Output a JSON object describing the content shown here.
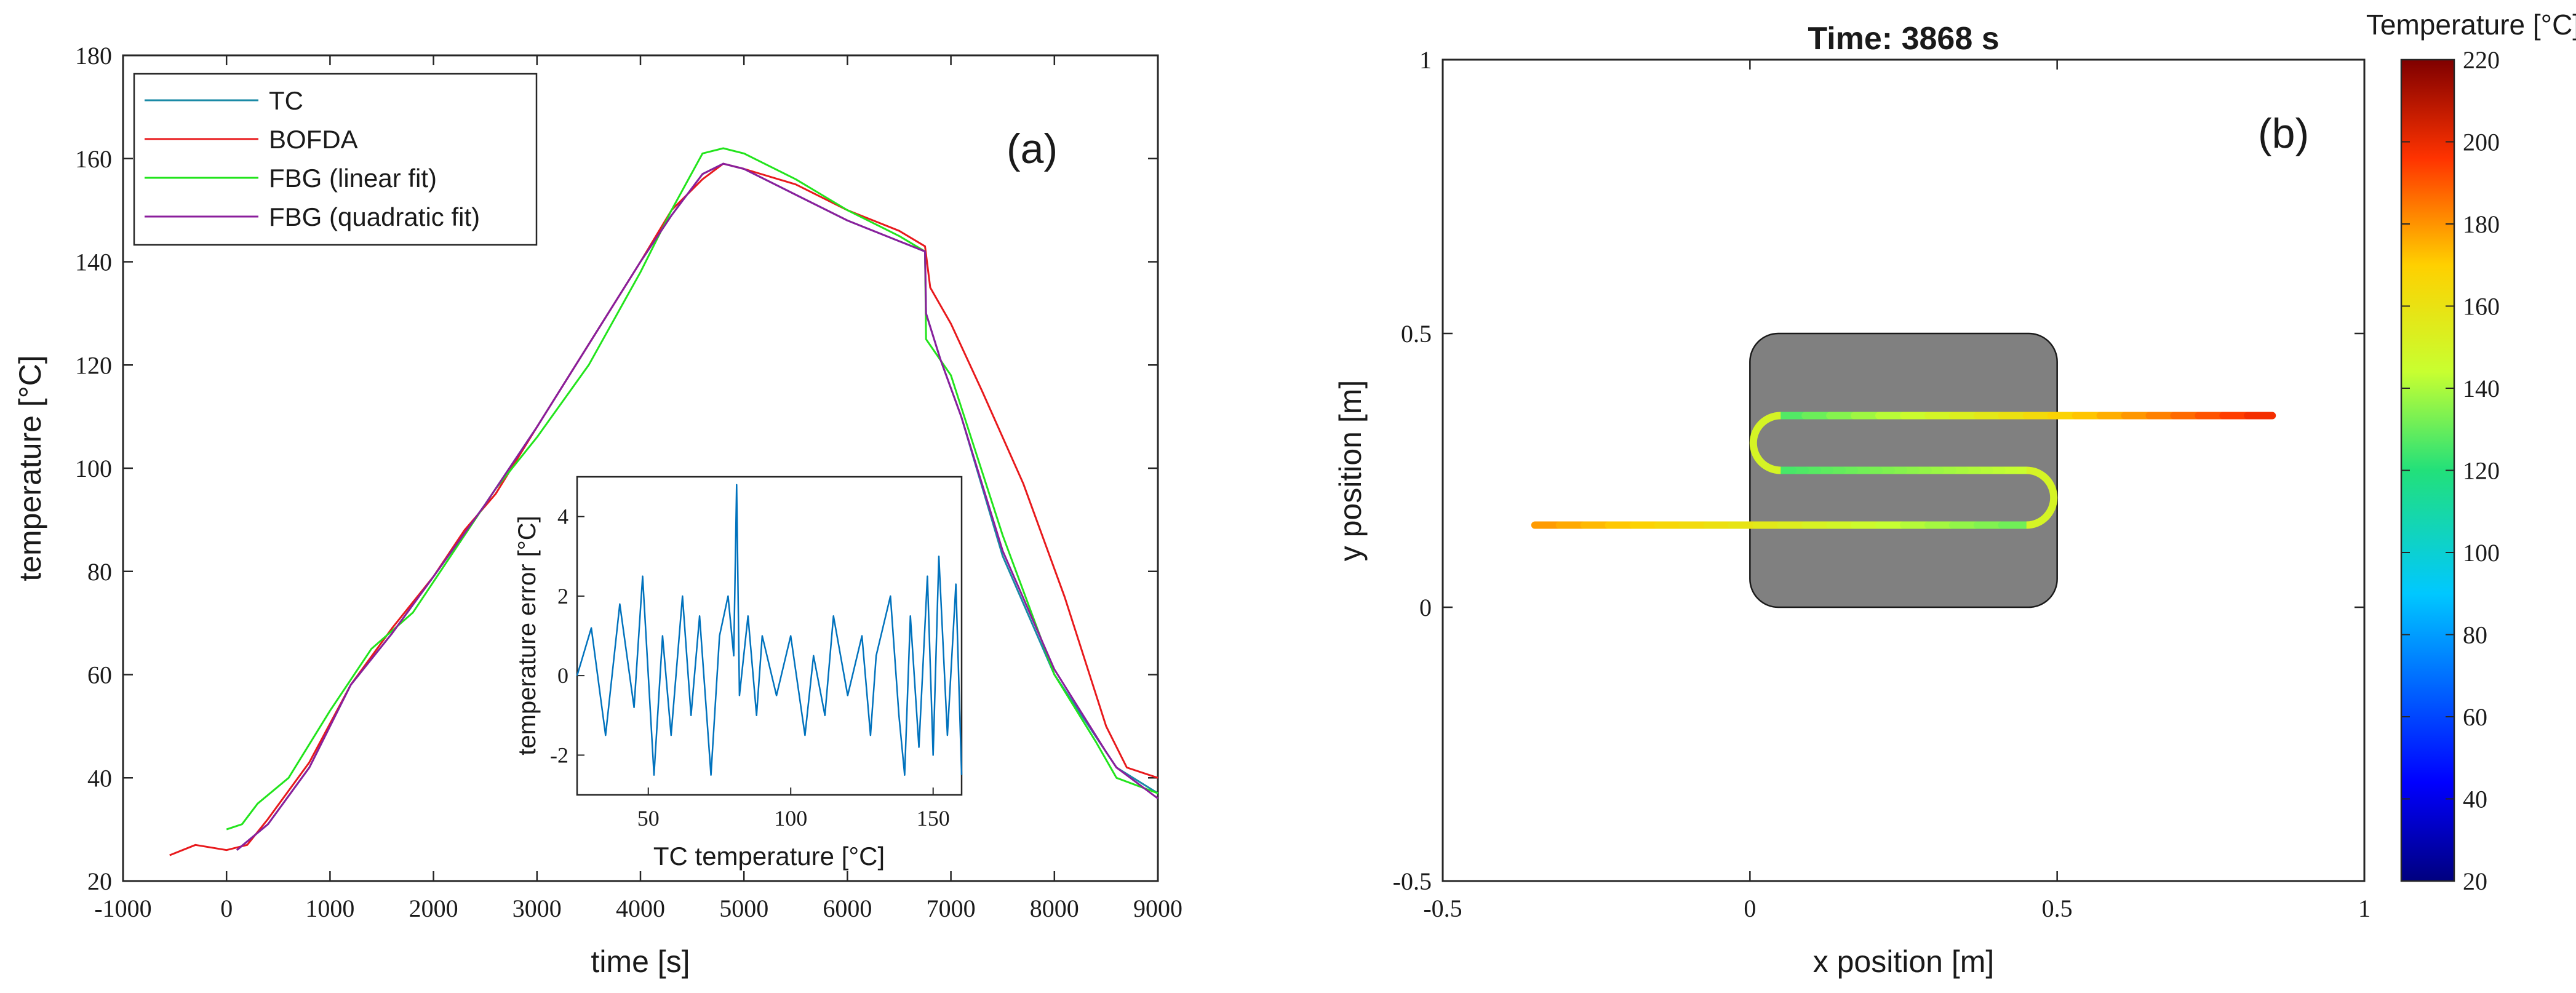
{
  "figure": {
    "panel_a_tag": "(a)",
    "panel_b_tag": "(b)"
  },
  "chart_data": [
    {
      "type": "line",
      "panel": "(a)",
      "title": "",
      "xlabel": "time [s]",
      "ylabel": "temperature  [°C]",
      "xlim": [
        -1000,
        9000
      ],
      "ylim": [
        20,
        180
      ],
      "xticks": [
        -1000,
        0,
        1000,
        2000,
        3000,
        4000,
        5000,
        6000,
        7000,
        8000,
        9000
      ],
      "yticks": [
        20,
        40,
        60,
        80,
        100,
        120,
        140,
        160,
        180
      ],
      "grid": false,
      "legend_position": "top-left",
      "series": [
        {
          "name": "TC",
          "color": "#1a8aa6",
          "x": [
            100,
            400,
            800,
            1200,
            1600,
            2000,
            2500,
            3000,
            3500,
            4000,
            4300,
            4600,
            4800,
            5000,
            5500,
            6000,
            6500,
            6750,
            6760,
            6900,
            7100,
            7500,
            8000,
            8500,
            8600,
            9000
          ],
          "y": [
            26,
            31,
            42,
            58,
            68,
            79,
            93,
            108,
            124,
            140,
            149,
            157,
            159,
            158,
            153,
            148,
            144,
            142,
            130,
            121,
            110,
            83,
            60,
            45,
            42,
            37
          ]
        },
        {
          "name": "BOFDA",
          "color": "#e8191c",
          "x": [
            -550,
            -300,
            0,
            200,
            400,
            800,
            1200,
            1600,
            2000,
            2300,
            2600,
            3000,
            3500,
            4000,
            4300,
            4600,
            4800,
            5000,
            5500,
            6000,
            6500,
            6750,
            6800,
            7000,
            7300,
            7700,
            8100,
            8500,
            8700,
            9000
          ],
          "y": [
            25,
            27,
            26,
            27,
            32,
            43,
            58,
            69,
            79,
            88,
            95,
            108,
            124,
            140,
            150,
            156,
            159,
            158,
            155,
            150,
            146,
            143,
            135,
            128,
            115,
            97,
            75,
            50,
            42,
            40
          ]
        },
        {
          "name": "FBG (linear fit)",
          "color": "#22e41c",
          "x": [
            0,
            150,
            300,
            600,
            1000,
            1400,
            1800,
            2200,
            2600,
            3000,
            3500,
            4000,
            4300,
            4600,
            4800,
            5000,
            5500,
            6000,
            6500,
            6750,
            6760,
            7000,
            7500,
            8000,
            8400,
            8600,
            9000
          ],
          "y": [
            30,
            31,
            35,
            40,
            53,
            65,
            72,
            84,
            96,
            106,
            120,
            138,
            150,
            161,
            162,
            161,
            156,
            150,
            145,
            142,
            125,
            118,
            87,
            60,
            47,
            40,
            37
          ]
        },
        {
          "name": "FBG (quadratic fit)",
          "color": "#8b1e9c",
          "x": [
            100,
            400,
            800,
            1200,
            1600,
            2000,
            2500,
            3000,
            3500,
            4000,
            4300,
            4600,
            4800,
            5000,
            5500,
            6000,
            6500,
            6750,
            6760,
            6900,
            7100,
            7500,
            8000,
            8500,
            8600,
            9000
          ],
          "y": [
            26,
            31,
            42,
            58,
            68,
            79,
            93,
            108,
            124,
            140,
            149,
            157,
            159,
            158,
            153,
            148,
            144,
            142,
            130,
            121,
            110,
            84,
            61,
            45,
            42,
            36
          ]
        }
      ]
    },
    {
      "type": "line",
      "panel": "(a) inset",
      "title": "",
      "xlabel": "TC temperature  [°C]",
      "ylabel": "temperature error  [°C]",
      "xlim": [
        25,
        160
      ],
      "ylim": [
        -3,
        5
      ],
      "xticks": [
        50,
        100,
        150
      ],
      "yticks": [
        -2,
        0,
        2,
        4
      ],
      "grid": false,
      "series": [
        {
          "name": "error",
          "color": "#0072bd",
          "x": [
            25,
            30,
            35,
            40,
            45,
            48,
            52,
            55,
            58,
            62,
            65,
            68,
            72,
            75,
            78,
            80,
            81,
            82,
            85,
            88,
            90,
            95,
            100,
            105,
            108,
            112,
            115,
            120,
            125,
            128,
            130,
            135,
            138,
            140,
            142,
            145,
            148,
            150,
            152,
            155,
            158,
            160
          ],
          "y": [
            0,
            1.2,
            -1.5,
            1.8,
            -0.8,
            2.5,
            -2.5,
            1,
            -1.5,
            2,
            -1,
            1.5,
            -2.5,
            1,
            2,
            0.5,
            4.8,
            -0.5,
            1.5,
            -1,
            1,
            -0.5,
            1,
            -1.5,
            0.5,
            -1,
            1.5,
            -0.5,
            1,
            -1.5,
            0.5,
            2,
            -1,
            -2.5,
            1.5,
            -1.8,
            2.5,
            -2,
            3,
            -1.5,
            2.3,
            -2.5
          ]
        }
      ]
    },
    {
      "type": "heatmap",
      "panel": "(b)",
      "title": "Time: 3868 s",
      "xlabel": "x position [m]",
      "ylabel": "y position [m]",
      "xlim": [
        -0.5,
        1
      ],
      "ylim": [
        -0.5,
        1
      ],
      "xticks": [
        -0.5,
        0,
        0.5,
        1
      ],
      "yticks": [
        -0.5,
        0,
        0.5,
        1
      ],
      "grid": false,
      "colorbar": {
        "label": "Temperature [°C]",
        "range": [
          20,
          220
        ],
        "ticks": [
          20,
          40,
          60,
          80,
          100,
          120,
          140,
          160,
          180,
          200,
          220
        ]
      },
      "plate": {
        "x0": 0,
        "x1": 0.5,
        "y0": 0,
        "y1": 0.5,
        "color": "#808080"
      },
      "fiber_path": {
        "points": [
          [
            -0.35,
            0.15
          ],
          [
            0.45,
            0.15
          ],
          [
            0.45,
            0.25
          ],
          [
            0.05,
            0.25
          ],
          [
            0.05,
            0.35
          ],
          [
            0.85,
            0.35
          ]
        ],
        "temperatures": [
          180,
          150,
          150,
          130,
          150,
          120,
          200,
          140
        ]
      }
    }
  ]
}
